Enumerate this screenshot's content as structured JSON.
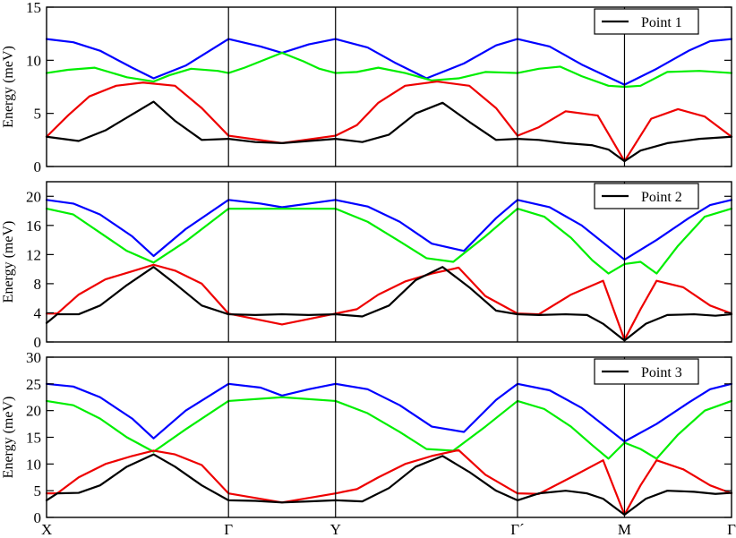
{
  "chart_data": [
    {
      "type": "line",
      "ylabel": "Energy (meV)",
      "ylim": [
        0,
        15
      ],
      "yticks": [
        0,
        5,
        10,
        15
      ],
      "grid": false,
      "legend": {
        "label": "Point 1",
        "placement": "top-right"
      },
      "path_labels": [
        "X",
        "Γ",
        "Y",
        "Γ´",
        "M",
        "Γ"
      ],
      "path_positions": [
        0,
        1.7,
        2.7,
        4.4,
        5.4,
        6.4
      ],
      "series": [
        {
          "color": "#0000ff",
          "x": [
            0,
            0.25,
            0.5,
            0.8,
            1.0,
            1.3,
            1.7,
            2.0,
            2.2,
            2.45,
            2.7,
            3.0,
            3.25,
            3.55,
            3.9,
            4.2,
            4.4,
            4.7,
            5.0,
            5.4,
            5.7,
            6.0,
            6.2,
            6.4
          ],
          "y": [
            12.0,
            11.7,
            10.9,
            9.3,
            8.3,
            9.5,
            12.0,
            11.3,
            10.7,
            11.5,
            12.0,
            11.2,
            9.8,
            8.3,
            9.7,
            11.4,
            12.0,
            11.3,
            9.6,
            7.7,
            9.2,
            10.9,
            11.8,
            12.0
          ]
        },
        {
          "color": "#00ee00",
          "x": [
            0,
            0.2,
            0.45,
            0.75,
            1.0,
            1.15,
            1.35,
            1.6,
            1.7,
            1.85,
            2.0,
            2.2,
            2.4,
            2.55,
            2.7,
            2.9,
            3.1,
            3.35,
            3.6,
            3.85,
            4.1,
            4.4,
            4.6,
            4.8,
            5.0,
            5.25,
            5.4,
            5.55,
            5.8,
            6.1,
            6.4
          ],
          "y": [
            8.8,
            9.1,
            9.3,
            8.4,
            8.0,
            8.6,
            9.2,
            9.0,
            8.8,
            9.3,
            9.9,
            10.7,
            9.9,
            9.2,
            8.8,
            8.9,
            9.3,
            8.8,
            8.1,
            8.3,
            8.9,
            8.8,
            9.2,
            9.4,
            8.5,
            7.6,
            7.5,
            7.6,
            8.9,
            9.0,
            8.8
          ]
        },
        {
          "color": "#ee0000",
          "x": [
            0,
            0.2,
            0.4,
            0.65,
            0.9,
            1.2,
            1.45,
            1.7,
            2.2,
            2.7,
            2.9,
            3.1,
            3.35,
            3.65,
            3.95,
            4.2,
            4.4,
            4.6,
            4.85,
            5.15,
            5.4,
            5.65,
            5.9,
            6.15,
            6.4
          ],
          "y": [
            2.8,
            4.8,
            6.6,
            7.6,
            7.9,
            7.6,
            5.5,
            2.9,
            2.2,
            2.9,
            3.9,
            6.0,
            7.6,
            8.0,
            7.6,
            5.5,
            2.9,
            3.7,
            5.2,
            4.8,
            0.5,
            4.5,
            5.4,
            4.7,
            2.8
          ]
        },
        {
          "color": "#000000",
          "x": [
            0,
            0.3,
            0.55,
            0.8,
            1.0,
            1.2,
            1.45,
            1.7,
            1.95,
            2.2,
            2.45,
            2.7,
            2.95,
            3.2,
            3.45,
            3.7,
            3.95,
            4.2,
            4.4,
            4.6,
            4.85,
            5.1,
            5.25,
            5.4,
            5.55,
            5.8,
            6.1,
            6.4
          ],
          "y": [
            2.8,
            2.4,
            3.4,
            4.9,
            6.1,
            4.3,
            2.5,
            2.6,
            2.3,
            2.2,
            2.4,
            2.6,
            2.3,
            3.0,
            5.0,
            6.0,
            4.2,
            2.5,
            2.6,
            2.5,
            2.2,
            2.0,
            1.6,
            0.5,
            1.5,
            2.2,
            2.6,
            2.8
          ]
        }
      ]
    },
    {
      "type": "line",
      "ylabel": "Energy (meV)",
      "ylim": [
        0,
        22
      ],
      "yticks": [
        0,
        4,
        8,
        12,
        16,
        20
      ],
      "grid": false,
      "legend": {
        "label": "Point 2",
        "placement": "top-right"
      },
      "path_labels": [
        "X",
        "Γ",
        "Y",
        "Γ´",
        "M",
        "Γ"
      ],
      "path_positions": [
        0,
        1.7,
        2.7,
        4.4,
        5.4,
        6.4
      ],
      "series": [
        {
          "color": "#0000ff",
          "x": [
            0,
            0.25,
            0.5,
            0.8,
            1.0,
            1.3,
            1.7,
            2.0,
            2.2,
            2.45,
            2.7,
            3.0,
            3.3,
            3.6,
            3.9,
            4.2,
            4.4,
            4.7,
            5.0,
            5.4,
            5.7,
            6.0,
            6.2,
            6.4
          ],
          "y": [
            19.5,
            19.0,
            17.5,
            14.5,
            11.8,
            15.5,
            19.5,
            19.0,
            18.5,
            19.0,
            19.5,
            18.6,
            16.5,
            13.5,
            12.5,
            17.0,
            19.5,
            18.5,
            16.0,
            11.3,
            14.0,
            17.0,
            18.8,
            19.5
          ]
        },
        {
          "color": "#00ee00",
          "x": [
            0,
            0.25,
            0.5,
            0.75,
            1.0,
            1.3,
            1.7,
            2.2,
            2.7,
            3.0,
            3.3,
            3.55,
            3.8,
            4.1,
            4.4,
            4.65,
            4.9,
            5.1,
            5.25,
            5.4,
            5.55,
            5.7,
            5.9,
            6.15,
            6.4
          ],
          "y": [
            18.3,
            17.5,
            15.0,
            12.5,
            10.9,
            13.8,
            18.3,
            18.3,
            18.3,
            16.5,
            13.8,
            11.5,
            11.0,
            14.5,
            18.3,
            17.2,
            14.3,
            11.2,
            9.4,
            10.7,
            11.0,
            9.4,
            13.2,
            17.2,
            18.3
          ]
        },
        {
          "color": "#ee0000",
          "x": [
            0,
            0.1,
            0.3,
            0.55,
            0.8,
            1.0,
            1.2,
            1.45,
            1.7,
            2.2,
            2.7,
            2.9,
            3.1,
            3.35,
            3.6,
            3.85,
            4.1,
            4.4,
            4.6,
            4.9,
            5.2,
            5.4,
            5.55,
            5.7,
            5.95,
            6.2,
            6.4
          ],
          "y": [
            3.9,
            3.9,
            6.5,
            8.6,
            9.7,
            10.6,
            9.8,
            8.0,
            3.9,
            2.4,
            3.9,
            4.5,
            6.5,
            8.3,
            9.4,
            10.2,
            6.3,
            3.9,
            3.8,
            6.5,
            8.4,
            0.3,
            4.5,
            8.4,
            7.5,
            5.0,
            3.9
          ]
        },
        {
          "color": "#000000",
          "x": [
            0,
            0.1,
            0.3,
            0.5,
            0.75,
            1.0,
            1.2,
            1.45,
            1.7,
            1.95,
            2.2,
            2.45,
            2.7,
            2.95,
            3.2,
            3.45,
            3.7,
            3.95,
            4.2,
            4.4,
            4.6,
            4.85,
            5.05,
            5.2,
            5.4,
            5.6,
            5.8,
            6.05,
            6.25,
            6.4
          ],
          "y": [
            2.6,
            3.8,
            3.8,
            5.0,
            7.8,
            10.3,
            8.0,
            5.0,
            3.8,
            3.7,
            3.8,
            3.7,
            3.8,
            3.5,
            5.0,
            8.5,
            10.3,
            7.5,
            4.3,
            3.8,
            3.7,
            3.8,
            3.7,
            2.5,
            0.2,
            2.5,
            3.7,
            3.8,
            3.6,
            3.8
          ]
        }
      ]
    },
    {
      "type": "line",
      "ylabel": "Energy (meV)",
      "ylim": [
        0,
        30
      ],
      "yticks": [
        0,
        5,
        10,
        15,
        20,
        25,
        30
      ],
      "grid": false,
      "legend": {
        "label": "Point 3",
        "placement": "top-right"
      },
      "path_labels": [
        "X",
        "Γ",
        "Y",
        "Γ´",
        "M",
        "Γ"
      ],
      "path_positions": [
        0,
        1.7,
        2.7,
        4.4,
        5.4,
        6.4
      ],
      "series": [
        {
          "color": "#0000ff",
          "x": [
            0,
            0.25,
            0.5,
            0.8,
            1.0,
            1.3,
            1.7,
            2.0,
            2.2,
            2.45,
            2.7,
            3.0,
            3.3,
            3.6,
            3.9,
            4.2,
            4.4,
            4.7,
            5.0,
            5.4,
            5.7,
            6.0,
            6.2,
            6.4
          ],
          "y": [
            25.0,
            24.5,
            22.5,
            18.5,
            14.8,
            20.0,
            25.0,
            24.3,
            22.8,
            24.0,
            25.0,
            24.0,
            21.0,
            17.0,
            16.0,
            22.0,
            25.0,
            23.8,
            20.5,
            14.2,
            17.5,
            21.5,
            24.0,
            25.0
          ]
        },
        {
          "color": "#00ee00",
          "x": [
            0,
            0.25,
            0.5,
            0.75,
            1.0,
            1.3,
            1.7,
            2.2,
            2.7,
            3.0,
            3.3,
            3.55,
            3.8,
            4.1,
            4.4,
            4.65,
            4.9,
            5.1,
            5.25,
            5.4,
            5.55,
            5.7,
            5.9,
            6.15,
            6.4
          ],
          "y": [
            21.8,
            21.0,
            18.5,
            15.0,
            12.3,
            16.5,
            21.8,
            22.5,
            21.8,
            19.5,
            16.0,
            12.8,
            12.5,
            17.0,
            21.8,
            20.3,
            17.0,
            13.5,
            11.0,
            14.0,
            12.8,
            11.0,
            15.5,
            20.0,
            21.8
          ]
        },
        {
          "color": "#ee0000",
          "x": [
            0,
            0.1,
            0.3,
            0.55,
            0.8,
            1.0,
            1.2,
            1.45,
            1.7,
            2.2,
            2.7,
            2.9,
            3.1,
            3.35,
            3.6,
            3.85,
            4.1,
            4.4,
            4.6,
            4.9,
            5.2,
            5.4,
            5.55,
            5.7,
            5.95,
            6.2,
            6.4
          ],
          "y": [
            4.5,
            4.5,
            7.5,
            10.0,
            11.5,
            12.5,
            11.8,
            9.8,
            4.5,
            2.8,
            4.5,
            5.3,
            7.5,
            10.0,
            11.5,
            12.6,
            8.0,
            4.5,
            4.4,
            7.5,
            10.7,
            0.5,
            6.0,
            10.7,
            9.0,
            6.0,
            4.5
          ]
        },
        {
          "color": "#000000",
          "x": [
            0,
            0.1,
            0.3,
            0.5,
            0.75,
            1.0,
            1.2,
            1.45,
            1.7,
            1.95,
            2.2,
            2.45,
            2.7,
            2.95,
            3.2,
            3.45,
            3.7,
            3.95,
            4.2,
            4.4,
            4.6,
            4.85,
            5.05,
            5.2,
            5.4,
            5.6,
            5.8,
            6.05,
            6.25,
            6.4
          ],
          "y": [
            3.2,
            4.5,
            4.6,
            6.0,
            9.5,
            11.8,
            9.5,
            6.0,
            3.2,
            3.1,
            2.8,
            3.0,
            3.2,
            3.0,
            5.5,
            9.5,
            11.5,
            8.5,
            5.0,
            3.2,
            4.5,
            5.0,
            4.5,
            3.5,
            0.5,
            3.5,
            5.0,
            4.8,
            4.4,
            4.6
          ]
        }
      ]
    }
  ]
}
